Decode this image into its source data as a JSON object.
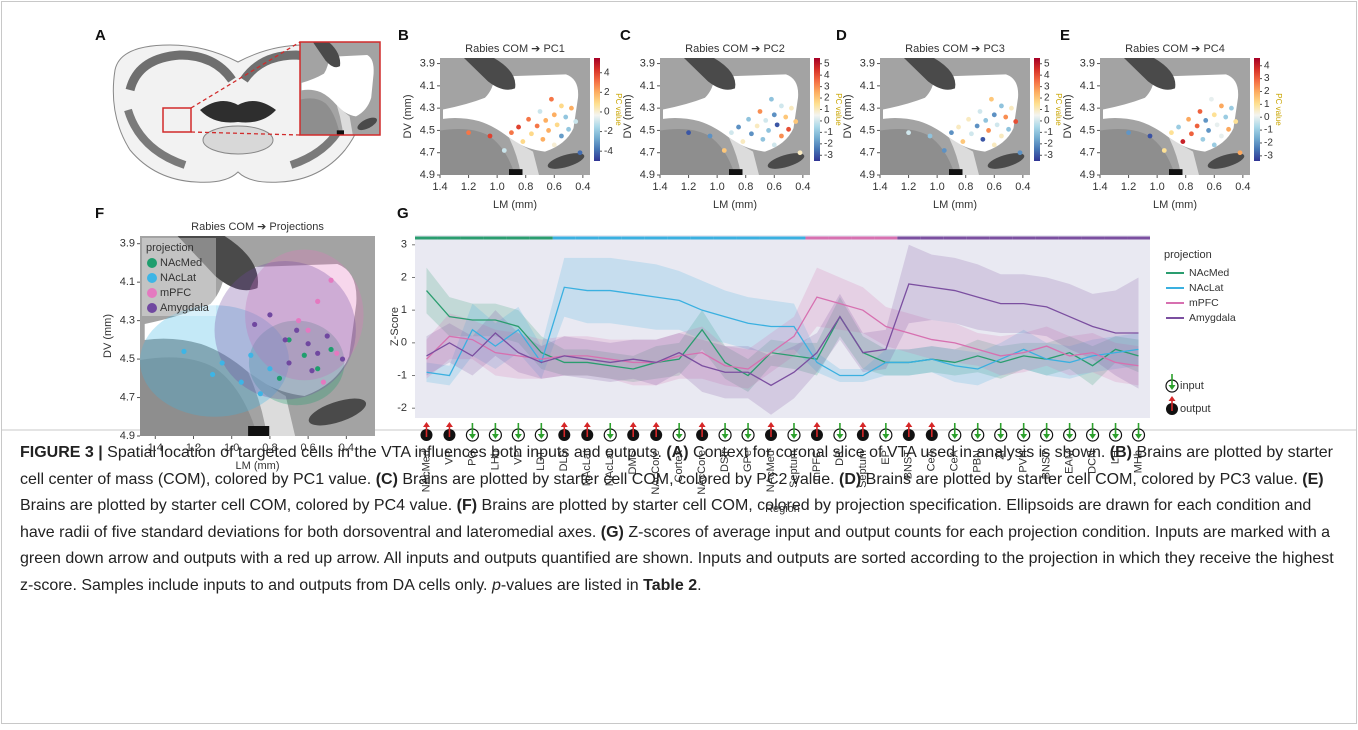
{
  "panel_labels": [
    "A",
    "B",
    "C",
    "D",
    "E",
    "F",
    "G"
  ],
  "chart_data": [
    {
      "type": "scatter",
      "title": "Rabies COM ➔ PC1",
      "xlabel": "LM (mm)",
      "ylabel": "DV (mm)",
      "x": [
        0.62,
        0.55,
        0.48,
        0.7,
        0.6,
        0.52,
        0.78,
        0.66,
        0.45,
        0.58,
        0.72,
        0.85,
        0.5,
        0.64,
        0.9,
        0.76,
        0.55,
        0.68,
        0.82,
        1.05,
        1.2,
        0.95,
        0.6,
        0.42
      ],
      "y": [
        4.22,
        4.28,
        4.3,
        4.33,
        4.36,
        4.38,
        4.4,
        4.41,
        4.42,
        4.45,
        4.46,
        4.47,
        4.49,
        4.5,
        4.52,
        4.53,
        4.55,
        4.58,
        4.6,
        4.55,
        4.52,
        4.68,
        4.63,
        4.7
      ],
      "values": [
        3,
        1,
        2,
        -1,
        2,
        -2,
        3,
        2,
        -1,
        1,
        3,
        4,
        -2,
        2,
        3,
        1,
        -3,
        2,
        1,
        4,
        3,
        -1,
        0,
        -4
      ],
      "xlim": [
        1.4,
        0.35
      ],
      "ylim": [
        4.9,
        3.85
      ],
      "xticks": [
        1.4,
        1.2,
        {
          "value": 1,
          "label": "1.0"
        },
        0.8,
        0.6,
        0.4
      ],
      "yticks": [
        3.9,
        4.1,
        4.3,
        4.5,
        4.7,
        4.9
      ],
      "colorbar": {
        "label": "PC value",
        "clim": [
          -5,
          5.5
        ],
        "ticks": [
          4,
          2,
          0,
          -2,
          -4
        ]
      },
      "colormap": [
        "#313695",
        "#4575b4",
        "#74add1",
        "#abd9e9",
        "#f4f4f0",
        "#fee090",
        "#fdae61",
        "#f46d43",
        "#d73027",
        "#a50026"
      ]
    },
    {
      "type": "scatter",
      "title": "Rabies COM ➔ PC2",
      "xlabel": "LM (mm)",
      "ylabel": "DV (mm)",
      "x": [
        0.62,
        0.55,
        0.48,
        0.7,
        0.6,
        0.52,
        0.78,
        0.66,
        0.45,
        0.58,
        0.72,
        0.85,
        0.5,
        0.64,
        0.9,
        0.76,
        0.55,
        0.68,
        0.82,
        1.05,
        1.2,
        0.95,
        0.6,
        0.42
      ],
      "y": [
        4.22,
        4.28,
        4.3,
        4.33,
        4.36,
        4.38,
        4.4,
        4.41,
        4.42,
        4.45,
        4.46,
        4.47,
        4.49,
        4.5,
        4.52,
        4.53,
        4.55,
        4.58,
        4.6,
        4.55,
        4.52,
        4.68,
        4.63,
        4.7
      ],
      "values": [
        -1,
        0,
        1,
        3,
        -2,
        2,
        -1,
        0,
        2,
        -3,
        1,
        -2,
        4,
        -1,
        0,
        -2,
        3,
        -1,
        1,
        -2,
        -3,
        2,
        0,
        1
      ],
      "xlim": [
        1.4,
        0.35
      ],
      "ylim": [
        4.9,
        3.85
      ],
      "xticks": [
        1.4,
        1.2,
        {
          "value": 1,
          "label": "1.0"
        },
        0.8,
        0.6,
        0.4
      ],
      "yticks": [
        3.9,
        4.1,
        4.3,
        4.5,
        4.7,
        4.9
      ],
      "colorbar": {
        "label": "PC value",
        "clim": [
          -3.5,
          5.5
        ],
        "ticks": [
          5,
          4,
          3,
          2,
          1,
          0,
          -1,
          -2,
          -3
        ]
      },
      "colormap": [
        "#313695",
        "#4575b4",
        "#74add1",
        "#abd9e9",
        "#f4f4f0",
        "#fee090",
        "#fdae61",
        "#f46d43",
        "#d73027",
        "#a50026"
      ]
    },
    {
      "type": "scatter",
      "title": "Rabies COM ➔ PC3",
      "xlabel": "LM (mm)",
      "ylabel": "DV (mm)",
      "x": [
        0.62,
        0.55,
        0.48,
        0.7,
        0.6,
        0.52,
        0.78,
        0.66,
        0.45,
        0.58,
        0.72,
        0.85,
        0.5,
        0.64,
        0.9,
        0.76,
        0.55,
        0.68,
        0.82,
        1.05,
        1.2,
        0.95,
        0.6,
        0.42
      ],
      "y": [
        4.22,
        4.28,
        4.3,
        4.33,
        4.36,
        4.38,
        4.4,
        4.41,
        4.42,
        4.45,
        4.46,
        4.47,
        4.49,
        4.5,
        4.52,
        4.53,
        4.55,
        4.58,
        4.6,
        4.55,
        4.52,
        4.68,
        4.63,
        4.7
      ],
      "values": [
        2,
        -1,
        1,
        0,
        -2,
        3,
        1,
        -1,
        4,
        0,
        -2,
        1,
        -1,
        3,
        -2,
        0,
        1,
        -3,
        2,
        -1,
        0,
        -2,
        1,
        -2
      ],
      "xlim": [
        1.4,
        0.35
      ],
      "ylim": [
        4.9,
        3.85
      ],
      "xticks": [
        1.4,
        1.2,
        {
          "value": 1,
          "label": "1.0"
        },
        0.8,
        0.6,
        0.4
      ],
      "yticks": [
        3.9,
        4.1,
        4.3,
        4.5,
        4.7,
        4.9
      ],
      "colorbar": {
        "label": "PC value",
        "clim": [
          -3.5,
          5.5
        ],
        "ticks": [
          5,
          4,
          3,
          2,
          1,
          0,
          -1,
          -2,
          -3
        ]
      },
      "colormap": [
        "#313695",
        "#4575b4",
        "#74add1",
        "#abd9e9",
        "#f4f4f0",
        "#fee090",
        "#fdae61",
        "#f46d43",
        "#d73027",
        "#a50026"
      ]
    },
    {
      "type": "scatter",
      "title": "Rabies COM ➔ PC4",
      "xlabel": "LM (mm)",
      "ylabel": "DV (mm)",
      "x": [
        0.62,
        0.55,
        0.48,
        0.7,
        0.6,
        0.52,
        0.78,
        0.66,
        0.45,
        0.58,
        0.72,
        0.85,
        0.5,
        0.64,
        0.9,
        0.76,
        0.55,
        0.68,
        0.82,
        1.05,
        1.2,
        0.95,
        0.6,
        0.42
      ],
      "y": [
        4.22,
        4.28,
        4.3,
        4.33,
        4.36,
        4.38,
        4.4,
        4.41,
        4.42,
        4.45,
        4.46,
        4.47,
        4.49,
        4.5,
        4.52,
        4.53,
        4.55,
        4.58,
        4.6,
        4.55,
        4.52,
        4.68,
        4.63,
        4.7
      ],
      "values": [
        0,
        2,
        -1,
        3,
        1,
        -1,
        2,
        -2,
        1,
        0,
        3,
        -1,
        2,
        -2,
        1,
        3,
        0,
        -1,
        4,
        -3,
        -2,
        1,
        -1,
        2
      ],
      "xlim": [
        1.4,
        0.35
      ],
      "ylim": [
        4.9,
        3.85
      ],
      "xticks": [
        1.4,
        1.2,
        {
          "value": 1,
          "label": "1.0"
        },
        0.8,
        0.6,
        0.4
      ],
      "yticks": [
        3.9,
        4.1,
        4.3,
        4.5,
        4.7,
        4.9
      ],
      "colorbar": {
        "label": "PC value",
        "clim": [
          -3.4,
          4.6
        ],
        "ticks": [
          4,
          3,
          2,
          1,
          0,
          -1,
          -2,
          -3
        ]
      },
      "colormap": [
        "#313695",
        "#4575b4",
        "#74add1",
        "#abd9e9",
        "#f4f4f0",
        "#fee090",
        "#fdae61",
        "#f46d43",
        "#d73027",
        "#a50026"
      ]
    },
    {
      "type": "groups",
      "title": "Rabies COM ➔ Projections",
      "xlabel": "LM (mm)",
      "ylabel": "DV (mm)",
      "legend_title": "projection",
      "legend": "upper left",
      "series": [
        {
          "name": "NAcMed",
          "color": "#1f9e6e",
          "x": [
            0.7,
            0.62,
            0.55,
            0.75,
            0.48
          ],
          "y": [
            4.4,
            4.48,
            4.55,
            4.6,
            4.45
          ],
          "ellipse": {
            "cx": 0.66,
            "cy": 4.52,
            "rx": 0.25,
            "ry": 0.22
          }
        },
        {
          "name": "NAcLat",
          "color": "#3db5e6",
          "x": [
            1.25,
            1.1,
            1.05,
            0.95,
            0.85,
            0.8,
            0.9
          ],
          "y": [
            4.46,
            4.58,
            4.52,
            4.62,
            4.68,
            4.55,
            4.48
          ],
          "ellipse": {
            "cx": 1.09,
            "cy": 4.51,
            "rx": 0.39,
            "ry": 0.29
          }
        },
        {
          "name": "mPFC",
          "color": "#e479c0",
          "x": [
            0.48,
            0.55,
            0.6,
            0.45,
            0.65,
            0.52
          ],
          "y": [
            4.09,
            4.2,
            4.35,
            4.47,
            4.3,
            4.62
          ],
          "ellipse": {
            "cx": 0.62,
            "cy": 4.27,
            "rx": 0.31,
            "ry": 0.34
          }
        },
        {
          "name": "Amygdala",
          "color": "#7048a0",
          "x": [
            0.88,
            0.8,
            0.72,
            0.66,
            0.6,
            0.55,
            0.5,
            0.42,
            0.7,
            0.58
          ],
          "y": [
            4.32,
            4.27,
            4.4,
            4.35,
            4.42,
            4.47,
            4.38,
            4.5,
            4.52,
            4.56
          ],
          "ellipse": {
            "cx": 0.72,
            "cy": 4.35,
            "rx": 0.37,
            "ry": 0.36
          }
        }
      ],
      "xlim": [
        1.48,
        0.25
      ],
      "ylim": [
        4.9,
        3.86
      ],
      "xticks": [
        1.4,
        1.2,
        {
          "value": 1,
          "label": "1.0"
        },
        0.8,
        0.6,
        0.4
      ],
      "yticks": [
        3.9,
        4.1,
        4.3,
        4.5,
        4.7,
        4.9
      ]
    },
    {
      "type": "line",
      "xlabel": "Region",
      "ylabel": "Z-Score",
      "legend_title": "projection",
      "legend": "right",
      "categories": [
        "NAcMed",
        "VP",
        "PO",
        "LHb",
        "VP",
        "LDT",
        "DLS",
        "NAcLat",
        "NAcLat",
        "DMS",
        "NAcCore",
        "Cortex",
        "NAcCore",
        "DStr",
        "GPe",
        "NAcMed",
        "Septum",
        "mPFC",
        "DR",
        "Septum",
        "EP",
        "BNST",
        "CeA",
        "CeA",
        "PBN",
        "ZI",
        "PVH",
        "BNST",
        "EAM",
        "DCN",
        "LH",
        "MHb"
      ],
      "markers": [
        "output",
        "output",
        "input",
        "input",
        "input",
        "input",
        "output",
        "output",
        "input",
        "output",
        "output",
        "input",
        "output",
        "input",
        "input",
        "output",
        "input",
        "output",
        "input",
        "output",
        "input",
        "output",
        "output",
        "input",
        "input",
        "input",
        "input",
        "input",
        "input",
        "input",
        "input",
        "input"
      ],
      "marker_labels": [
        "input",
        "output"
      ],
      "series": [
        {
          "name": "NAcMed",
          "color": "#2a9d6f",
          "values": [
            1.6,
            0.8,
            0.7,
            0.7,
            0.5,
            -0.3,
            -0.6,
            -0.6,
            -0.7,
            -0.8,
            -0.6,
            -0.5,
            0.4,
            -0.6,
            -1.0,
            -0.3,
            -0.4,
            -0.5,
            0.8,
            -0.3,
            -0.6,
            -0.6,
            -0.5,
            -0.6,
            -0.4,
            -0.6,
            -0.4,
            -0.5,
            -0.3,
            -0.7,
            -0.2,
            -0.4
          ],
          "errors": [
            0.7,
            0.6,
            0.5,
            0.5,
            0.5,
            0.5,
            0.4,
            0.4,
            0.4,
            0.4,
            0.5,
            0.5,
            0.6,
            0.5,
            0.5,
            0.4,
            0.4,
            0.5,
            0.6,
            0.5,
            0.4,
            0.4,
            0.4,
            0.4,
            0.5,
            0.5,
            0.4,
            0.5,
            0.5,
            0.6,
            0.4,
            0.5
          ]
        },
        {
          "name": "NAcLat",
          "color": "#3ab0e0",
          "values": [
            -0.9,
            -1.0,
            0.4,
            -0.1,
            0.4,
            -0.6,
            1.7,
            1.6,
            1.6,
            1.5,
            1.4,
            1.3,
            1.0,
            0.8,
            0.6,
            0.5,
            0.5,
            -0.6,
            -1.0,
            -1.0,
            -0.6,
            -0.6,
            -0.5,
            -0.7,
            -0.8,
            -0.5,
            -0.2,
            -0.5,
            -0.6,
            -0.4,
            -0.3,
            -0.2
          ],
          "errors": [
            0.3,
            0.3,
            0.8,
            0.7,
            0.7,
            0.5,
            0.9,
            1.0,
            1.0,
            1.0,
            1.0,
            0.9,
            0.9,
            0.8,
            0.8,
            0.8,
            0.7,
            0.3,
            0.2,
            0.2,
            0.4,
            0.4,
            0.4,
            0.5,
            0.5,
            0.5,
            0.6,
            0.5,
            0.5,
            0.5,
            0.5,
            0.5
          ]
        },
        {
          "name": "mPFC",
          "color": "#d770b0",
          "values": [
            -0.5,
            0.2,
            0.1,
            -0.3,
            -0.4,
            -0.5,
            -0.4,
            -0.4,
            -0.5,
            -0.6,
            -0.6,
            -0.4,
            -0.3,
            -0.7,
            -0.8,
            -0.3,
            0.2,
            1.4,
            1.2,
            1.0,
            0.5,
            0.3,
            0.1,
            0.0,
            -0.2,
            -0.4,
            -0.3,
            -0.1,
            -0.4,
            -0.3,
            -0.6,
            -0.7
          ],
          "errors": [
            0.6,
            0.7,
            0.6,
            0.7,
            0.7,
            0.6,
            0.6,
            0.6,
            0.6,
            0.7,
            0.7,
            0.7,
            0.8,
            0.6,
            0.6,
            0.6,
            0.6,
            0.9,
            0.8,
            0.7,
            0.6,
            0.6,
            0.6,
            0.6,
            0.5,
            0.6,
            0.6,
            0.6,
            0.6,
            0.6,
            0.6,
            0.6
          ]
        },
        {
          "name": "Amygdala",
          "color": "#7b4fa0",
          "values": [
            -0.4,
            0.0,
            -0.4,
            0.3,
            -0.3,
            -0.6,
            -0.4,
            -0.5,
            -0.6,
            -0.5,
            -0.6,
            -0.3,
            -0.7,
            -0.9,
            -0.9,
            -1.3,
            -0.9,
            -0.3,
            0.8,
            -0.3,
            -0.2,
            1.8,
            1.7,
            1.6,
            1.4,
            1.2,
            1.2,
            1.1,
            0.8,
            0.5,
            0.3,
            0.3
          ],
          "errors": [
            0.6,
            0.6,
            0.6,
            0.7,
            0.6,
            0.5,
            0.6,
            0.6,
            0.6,
            0.6,
            0.7,
            0.6,
            0.8,
            0.8,
            0.8,
            0.9,
            0.8,
            0.6,
            0.7,
            0.6,
            0.6,
            1.2,
            1.0,
            1.0,
            1.0,
            0.9,
            0.9,
            0.9,
            1.0,
            1.0,
            1.3,
            1.7
          ]
        }
      ],
      "ylim": [
        -2.3,
        3.3
      ],
      "yticks": [
        -2,
        -1,
        0,
        1,
        2,
        3
      ]
    }
  ],
  "caption": [
    {
      "text": "FIGURE 3 |",
      "bold": true
    },
    {
      "text": " Spatial location of targeted cells in the VTA influences both inputs and outputs. "
    },
    {
      "text": "(A)",
      "bold": true
    },
    {
      "text": " Context for coronal slice of VTA used in analysis is shown. "
    },
    {
      "text": "(B)",
      "bold": true
    },
    {
      "text": " Brains are plotted by starter cell center of mass (COM), colored by PC1 value. "
    },
    {
      "text": "(C)",
      "bold": true
    },
    {
      "text": " Brains are plotted by starter cell COM, colored by PC2 value. "
    },
    {
      "text": "(D)",
      "bold": true
    },
    {
      "text": " Brains are plotted by starter cell COM, colored by PC3 value. "
    },
    {
      "text": "(E)",
      "bold": true
    },
    {
      "text": " Brains are plotted by starter cell COM, colored by PC4 value. "
    },
    {
      "text": "(F)",
      "bold": true
    },
    {
      "text": " Brains are plotted by starter cell COM, colored by projection specification. Ellipsoids are drawn for each condition and have radii of five standard deviations for both dorsoventral and lateromedial axes. "
    },
    {
      "text": "(G)",
      "bold": true
    },
    {
      "text": " Z-scores of average input and output counts for each projection condition. Inputs are marked with a green down arrow and outputs with a red up arrow. All inputs and outputs quantified are shown. Inputs and outputs are sorted according to the projection in which they receive the highest z-score. Samples include inputs to and outputs from DA cells only. "
    },
    {
      "text": "p",
      "italic": true
    },
    {
      "text": "-values are listed in "
    },
    {
      "text": "Table 2",
      "bold": true
    },
    {
      "text": "."
    }
  ]
}
